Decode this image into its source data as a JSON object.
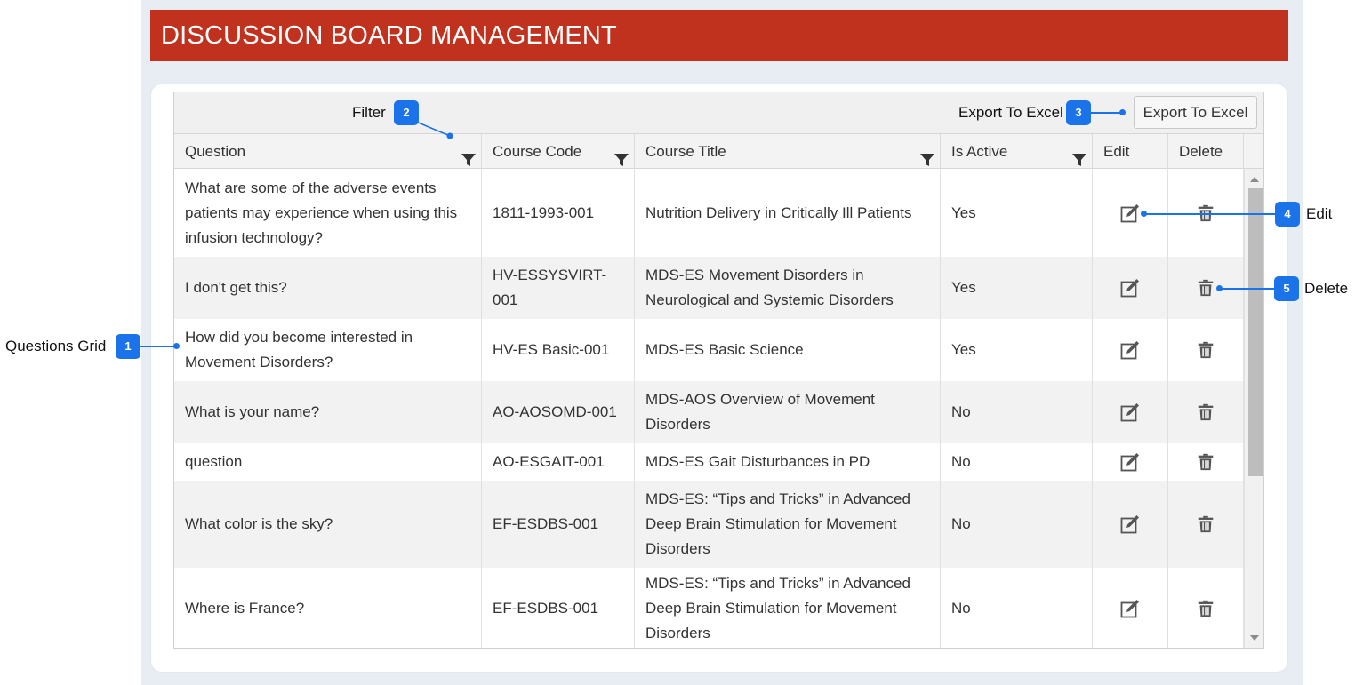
{
  "page_title": "DISCUSSION BOARD MANAGEMENT",
  "export_button_label": "Export To Excel",
  "columns": {
    "question": "Question",
    "course_code": "Course Code",
    "course_title": "Course Title",
    "is_active": "Is Active",
    "edit": "Edit",
    "delete": "Delete"
  },
  "rows": [
    {
      "question": "What are some of the adverse events patients may experience when using this infusion technology?",
      "course_code": "1811-1993-001",
      "course_title": "Nutrition Delivery in Critically Ill Patients",
      "is_active": "Yes"
    },
    {
      "question": "I don't get this?",
      "course_code": "HV-ESSYSVIRT-001",
      "course_title": "MDS-ES Movement Disorders in Neurological and Systemic Disorders",
      "is_active": "Yes"
    },
    {
      "question": "How did you become interested in Movement Disorders?",
      "course_code": "HV-ES Basic-001",
      "course_title": "MDS-ES Basic Science",
      "is_active": "Yes"
    },
    {
      "question": "What is your name?",
      "course_code": "AO-AOSOMD-001",
      "course_title": "MDS-AOS Overview of Movement Disorders",
      "is_active": "No"
    },
    {
      "question": "question",
      "course_code": "AO-ESGAIT-001",
      "course_title": "MDS-ES Gait Disturbances in PD",
      "is_active": "No"
    },
    {
      "question": "What color is the sky?",
      "course_code": "EF-ESDBS-001",
      "course_title": "MDS-ES: “Tips and Tricks” in Advanced Deep Brain Stimulation for Movement Disorders",
      "is_active": "No"
    },
    {
      "question": "Where is France?",
      "course_code": "EF-ESDBS-001",
      "course_title": "MDS-ES: “Tips and Tricks” in Advanced Deep Brain Stimulation for Movement Disorders",
      "is_active": "No"
    }
  ],
  "annotations": [
    {
      "number": "1",
      "label": "Questions Grid"
    },
    {
      "number": "2",
      "label": "Filter"
    },
    {
      "number": "3",
      "label": "Export To Excel"
    },
    {
      "number": "4",
      "label": "Edit"
    },
    {
      "number": "5",
      "label": "Delete"
    }
  ],
  "icons": {
    "filter": "funnel-icon",
    "edit": "pencil-square-icon",
    "delete": "trash-icon"
  },
  "colors": {
    "title_bar": "#c0311e",
    "annotation_badge": "#1a73e8",
    "alt_row": "#f2f2f2"
  }
}
